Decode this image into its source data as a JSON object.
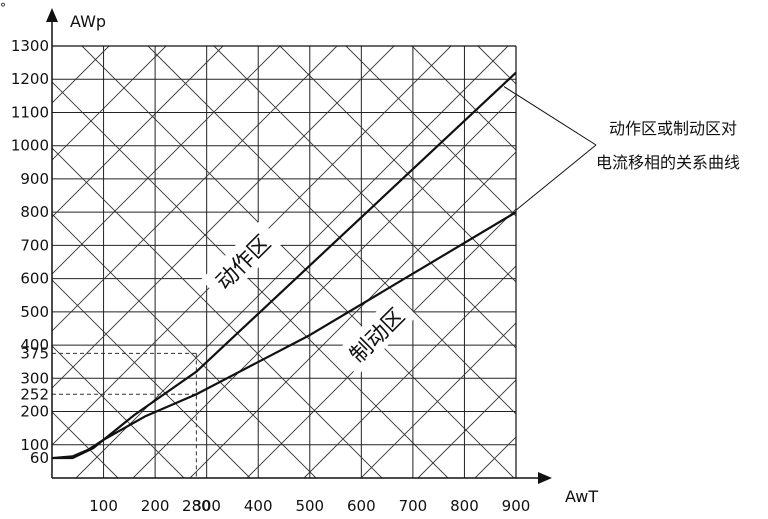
{
  "corner_mark": "°",
  "chart_data": {
    "type": "line",
    "xlabel": "AwT",
    "ylabel": "AWp",
    "x_ticks": [
      "100",
      "200",
      "280",
      "300",
      "400",
      "500",
      "600",
      "700",
      "800",
      "900"
    ],
    "y_ticks": [
      "60",
      "100",
      "200",
      "252",
      "300",
      "375",
      "400",
      "500",
      "600",
      "700",
      "800",
      "900",
      "1000",
      "1100",
      "1200",
      "1300"
    ],
    "xlim": [
      0,
      900
    ],
    "ylim": [
      0,
      1300
    ],
    "grid": true,
    "series": [
      {
        "x": [
          0,
          40,
          80,
          120,
          160,
          280,
          900
        ],
        "y": [
          60,
          60,
          90,
          140,
          190,
          320,
          1220
        ]
      },
      {
        "x": [
          0,
          40,
          70,
          100,
          180,
          280,
          500,
          900
        ],
        "y": [
          60,
          65,
          85,
          115,
          185,
          252,
          430,
          800
        ]
      }
    ],
    "reference_lines": [
      {
        "x": 280,
        "y": 375
      },
      {
        "x": 280,
        "y": 252
      }
    ],
    "regions": [
      {
        "label": "动作区",
        "x": 370,
        "y": 650
      },
      {
        "label": "制动区",
        "x": 630,
        "y": 430
      }
    ],
    "annotation": {
      "lines": [
        "动作区或制动区对",
        "电流移相的关系曲线"
      ],
      "targets": [
        {
          "x": 900,
          "y": 1220
        },
        {
          "x": 900,
          "y": 800
        }
      ]
    }
  }
}
